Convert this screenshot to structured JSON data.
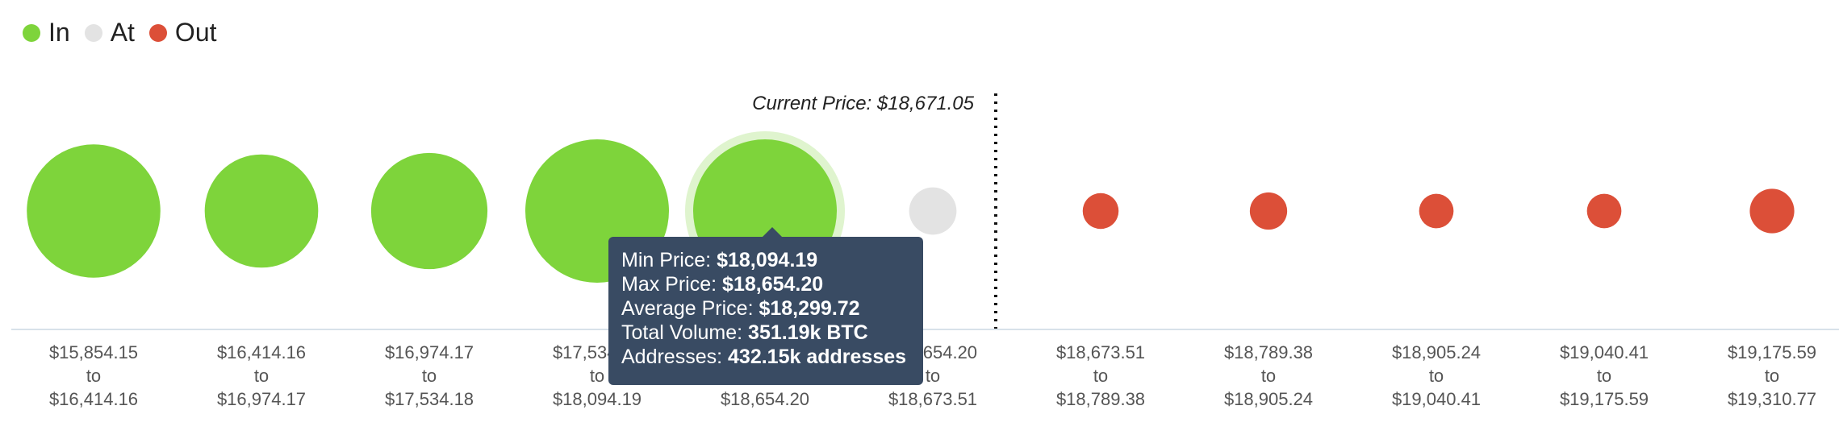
{
  "legend": {
    "items": [
      {
        "label": "In",
        "color": "#7ed43b"
      },
      {
        "label": "At",
        "color": "#e3e3e3"
      },
      {
        "label": "Out",
        "color": "#dc4f38"
      }
    ]
  },
  "current_price_label": "Current Price: $18,671.05",
  "tooltip": {
    "min_price_label": "Min Price:",
    "min_price_value": "$18,094.19",
    "max_price_label": "Max Price:",
    "max_price_value": "$18,654.20",
    "avg_price_label": "Average Price:",
    "avg_price_value": "$18,299.72",
    "total_volume_label": "Total Volume:",
    "total_volume_value": "351.19k BTC",
    "addresses_label": "Addresses:",
    "addresses_value": "432.15k addresses"
  },
  "chart_data": {
    "type": "scatter",
    "title": "",
    "bins": [
      {
        "min": "$15,854.15",
        "max": "$16,414.16",
        "status": "In",
        "relative_size": 0.93
      },
      {
        "min": "$16,414.16",
        "max": "$16,974.17",
        "status": "In",
        "relative_size": 0.79
      },
      {
        "min": "$16,974.17",
        "max": "$17,534.18",
        "status": "In",
        "relative_size": 0.81
      },
      {
        "min": "$17,534.18",
        "max": "$18,094.19",
        "status": "In",
        "relative_size": 1.0
      },
      {
        "min": "$18,094.19",
        "max": "$18,654.20",
        "status": "In",
        "relative_size": 1.0,
        "highlighted": true
      },
      {
        "min": "$18,654.20",
        "max": "$18,673.51",
        "status": "At",
        "relative_size": 0.33
      },
      {
        "min": "$18,673.51",
        "max": "$18,789.38",
        "status": "Out",
        "relative_size": 0.25
      },
      {
        "min": "$18,789.38",
        "max": "$18,905.24",
        "status": "Out",
        "relative_size": 0.26
      },
      {
        "min": "$18,905.24",
        "max": "$19,040.41",
        "status": "Out",
        "relative_size": 0.24
      },
      {
        "min": "$19,040.41",
        "max": "$19,175.59",
        "status": "Out",
        "relative_size": 0.24
      },
      {
        "min": "$19,175.59",
        "max": "$19,310.77",
        "status": "Out",
        "relative_size": 0.31
      }
    ],
    "tick_joiner": "to",
    "current_price": 18671.05,
    "current_price_after_bin_index": 5
  }
}
